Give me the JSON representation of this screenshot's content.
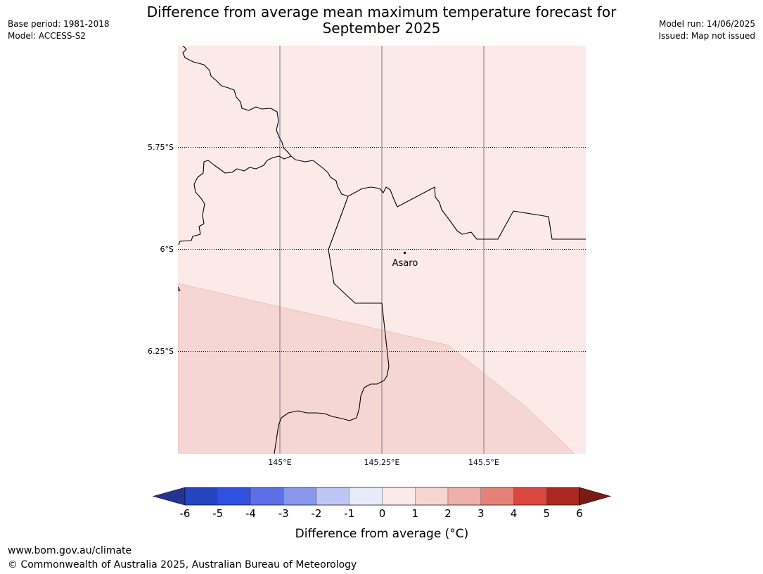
{
  "title": "Difference from average mean maximum temperature forecast for September 2025",
  "meta_left": {
    "base_period": "Base period: 1981-2018",
    "model": "Model: ACCESS-S2"
  },
  "meta_right": {
    "model_run": "Model run: 14/06/2025",
    "issued": "Issued: Map not issued"
  },
  "map": {
    "lat_labels": [
      "5.75°S",
      "6°S",
      "6.25°S"
    ],
    "lon_labels": [
      "145°E",
      "145.25°E",
      "145.5°E"
    ],
    "place": "Asaro",
    "region_colors": {
      "zero_to_one": "#fbeae8",
      "one_to_two": "#f5d6d3"
    }
  },
  "colorbar": {
    "ticks": [
      "-6",
      "-5",
      "-4",
      "-3",
      "-2",
      "-1",
      "0",
      "1",
      "2",
      "3",
      "4",
      "5",
      "6"
    ],
    "colors": [
      "#253494",
      "#2545c0",
      "#3050e0",
      "#5c6fe6",
      "#8896ec",
      "#bfc6f4",
      "#e8ebfc",
      "#fbeae8",
      "#f5d6d3",
      "#eeb0aa",
      "#e6817a",
      "#d9483e",
      "#ab2820",
      "#7a1b18"
    ],
    "label": "Difference from average (°C)"
  },
  "footer": {
    "url": "www.bom.gov.au/climate",
    "copyright": "© Commonwealth of Australia 2025, Australian Bureau of Meteorology"
  }
}
